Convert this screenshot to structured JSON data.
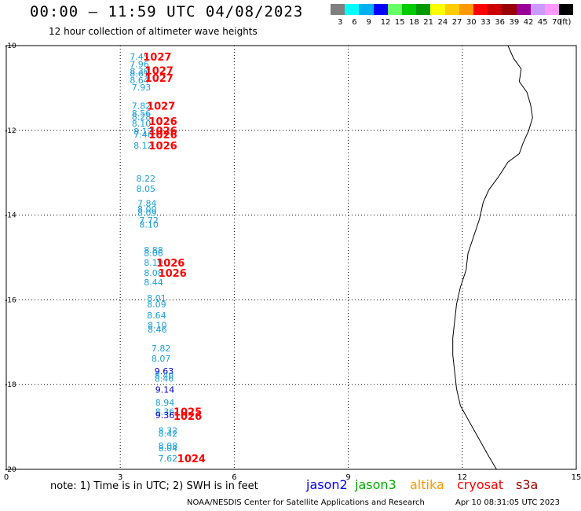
{
  "title": "00:00 – 11:59 UTC 04/08/2023",
  "subtitle": "12 hour collection of altimeter wave heights",
  "legend": {
    "unit": "(ft)",
    "bins": [
      {
        "label": "3",
        "color": "#808080"
      },
      {
        "label": "6",
        "color": "#00ffff"
      },
      {
        "label": "9",
        "color": "#00b0f0"
      },
      {
        "label": "12",
        "color": "#0000ff"
      },
      {
        "label": "15",
        "color": "#66ff66"
      },
      {
        "label": "18",
        "color": "#00cc00"
      },
      {
        "label": "21",
        "color": "#009900"
      },
      {
        "label": "24",
        "color": "#ffff00"
      },
      {
        "label": "27",
        "color": "#ffcc00"
      },
      {
        "label": "30",
        "color": "#ff9900"
      },
      {
        "label": "33",
        "color": "#ff0000"
      },
      {
        "label": "36",
        "color": "#cc0000"
      },
      {
        "label": "39",
        "color": "#990000"
      },
      {
        "label": "42",
        "color": "#990099"
      },
      {
        "label": "45",
        "color": "#cc99ff"
      },
      {
        "label": "70",
        "color": "#ff99ff"
      },
      {
        "label": "",
        "color": "#000000"
      }
    ]
  },
  "map": {
    "lon_range": [
      0,
      15
    ],
    "lat_range": [
      -20,
      -10
    ],
    "x_ticks": [
      "0",
      "3",
      "6",
      "9",
      "12",
      "15"
    ],
    "y_ticks": [
      "-10",
      "-12",
      "-14",
      "-16",
      "-18",
      "-20"
    ],
    "grid": "dotted",
    "colors": {
      "swh": "#1aa0d8",
      "swh_dark": "#0000cc",
      "pressure": "#ff0000"
    },
    "swh_readings": [
      {
        "lon": 3.25,
        "lat": -10.26,
        "value": "7.45"
      },
      {
        "lon": 3.25,
        "lat": -10.44,
        "value": "7.96"
      },
      {
        "lon": 3.25,
        "lat": -10.6,
        "value": "8.30"
      },
      {
        "lon": 3.25,
        "lat": -10.66,
        "value": "8.61"
      },
      {
        "lon": 3.25,
        "lat": -10.82,
        "value": "8.64"
      },
      {
        "lon": 3.3,
        "lat": -10.98,
        "value": "7.93"
      },
      {
        "lon": 3.3,
        "lat": -11.42,
        "value": "7.82"
      },
      {
        "lon": 3.3,
        "lat": -11.6,
        "value": "8.56"
      },
      {
        "lon": 3.3,
        "lat": -11.68,
        "value": "8.28"
      },
      {
        "lon": 3.3,
        "lat": -11.84,
        "value": "8.10"
      },
      {
        "lon": 3.35,
        "lat": -12.02,
        "value": "8.17"
      },
      {
        "lon": 3.35,
        "lat": -12.1,
        "value": "7.46"
      },
      {
        "lon": 3.35,
        "lat": -12.36,
        "value": "8.12"
      },
      {
        "lon": 3.42,
        "lat": -13.14,
        "value": "8.22"
      },
      {
        "lon": 3.42,
        "lat": -13.38,
        "value": "8.05"
      },
      {
        "lon": 3.45,
        "lat": -13.72,
        "value": "7.84"
      },
      {
        "lon": 3.45,
        "lat": -13.86,
        "value": "8.00"
      },
      {
        "lon": 3.45,
        "lat": -13.94,
        "value": "8.09"
      },
      {
        "lon": 3.5,
        "lat": -14.12,
        "value": "7.72"
      },
      {
        "lon": 3.5,
        "lat": -14.22,
        "value": "8.10"
      },
      {
        "lon": 3.62,
        "lat": -14.82,
        "value": "8.88"
      },
      {
        "lon": 3.62,
        "lat": -14.9,
        "value": "8.06"
      },
      {
        "lon": 3.62,
        "lat": -15.12,
        "value": "8.19"
      },
      {
        "lon": 3.62,
        "lat": -15.36,
        "value": "8.08"
      },
      {
        "lon": 3.62,
        "lat": -15.58,
        "value": "8.44"
      },
      {
        "lon": 3.7,
        "lat": -15.96,
        "value": "8.01"
      },
      {
        "lon": 3.7,
        "lat": -16.1,
        "value": "8.09"
      },
      {
        "lon": 3.7,
        "lat": -16.36,
        "value": "8.64"
      },
      {
        "lon": 3.72,
        "lat": -16.6,
        "value": "8.10"
      },
      {
        "lon": 3.72,
        "lat": -16.7,
        "value": "8.46"
      },
      {
        "lon": 3.82,
        "lat": -17.14,
        "value": "7.82"
      },
      {
        "lon": 3.82,
        "lat": -17.38,
        "value": "8.07"
      },
      {
        "lon": 3.9,
        "lat": -17.68,
        "value": "9.63",
        "dark": true
      },
      {
        "lon": 3.9,
        "lat": -17.78,
        "value": "8.40"
      },
      {
        "lon": 3.9,
        "lat": -17.86,
        "value": "8.46"
      },
      {
        "lon": 3.92,
        "lat": -18.12,
        "value": "9.14",
        "dark": true
      },
      {
        "lon": 3.92,
        "lat": -18.42,
        "value": "8.94"
      },
      {
        "lon": 3.92,
        "lat": -18.64,
        "value": "8.36"
      },
      {
        "lon": 3.92,
        "lat": -18.72,
        "value": "9.36",
        "dark": true
      },
      {
        "lon": 4.0,
        "lat": -19.08,
        "value": "8.32"
      },
      {
        "lon": 4.0,
        "lat": -19.16,
        "value": "8.42"
      },
      {
        "lon": 4.0,
        "lat": -19.44,
        "value": "8.08"
      },
      {
        "lon": 4.0,
        "lat": -19.5,
        "value": "8.04"
      },
      {
        "lon": 4.0,
        "lat": -19.74,
        "value": "7.62"
      }
    ],
    "pressure_readings": [
      {
        "lon": 3.6,
        "lat": -10.26,
        "value": "1027"
      },
      {
        "lon": 3.65,
        "lat": -10.58,
        "value": "1027"
      },
      {
        "lon": 3.65,
        "lat": -10.76,
        "value": "1027"
      },
      {
        "lon": 3.7,
        "lat": -11.42,
        "value": "1027"
      },
      {
        "lon": 3.75,
        "lat": -11.78,
        "value": "1026"
      },
      {
        "lon": 3.75,
        "lat": -12.0,
        "value": "1026"
      },
      {
        "lon": 3.75,
        "lat": -12.1,
        "value": "1026"
      },
      {
        "lon": 3.75,
        "lat": -12.36,
        "value": "1026"
      },
      {
        "lon": 3.95,
        "lat": -15.12,
        "value": "1026"
      },
      {
        "lon": 4.0,
        "lat": -15.36,
        "value": "1026"
      },
      {
        "lon": 4.4,
        "lat": -18.64,
        "value": "1025"
      },
      {
        "lon": 4.4,
        "lat": -18.74,
        "value": "1026"
      },
      {
        "lon": 4.5,
        "lat": -19.74,
        "value": "1024"
      }
    ],
    "coastline": [
      [
        13.2,
        -10.0
      ],
      [
        13.35,
        -10.3
      ],
      [
        13.55,
        -10.55
      ],
      [
        13.5,
        -10.85
      ],
      [
        13.7,
        -11.1
      ],
      [
        13.8,
        -11.4
      ],
      [
        13.85,
        -11.7
      ],
      [
        13.75,
        -12.0
      ],
      [
        13.6,
        -12.3
      ],
      [
        13.5,
        -12.55
      ],
      [
        13.2,
        -12.75
      ],
      [
        12.95,
        -13.1
      ],
      [
        12.7,
        -13.4
      ],
      [
        12.55,
        -13.7
      ],
      [
        12.45,
        -14.1
      ],
      [
        12.3,
        -14.5
      ],
      [
        12.15,
        -14.9
      ],
      [
        12.1,
        -15.3
      ],
      [
        11.95,
        -15.7
      ],
      [
        11.85,
        -16.1
      ],
      [
        11.8,
        -16.5
      ],
      [
        11.75,
        -16.9
      ],
      [
        11.75,
        -17.3
      ],
      [
        11.8,
        -17.7
      ],
      [
        11.85,
        -18.1
      ],
      [
        11.95,
        -18.5
      ],
      [
        12.2,
        -18.9
      ],
      [
        12.45,
        -19.3
      ],
      [
        12.7,
        -19.7
      ],
      [
        12.9,
        -20.0
      ]
    ]
  },
  "footer": {
    "note": "note: 1) Time is in UTC; 2) SWH is in feet",
    "satellites": [
      {
        "name": "jason2",
        "color": "#0000ff"
      },
      {
        "name": "jason3",
        "color": "#00aa00"
      },
      {
        "name": "altika",
        "color": "#ff9900"
      },
      {
        "name": "cryosat",
        "color": "#ff0000"
      },
      {
        "name": "s3a",
        "color": "#990000"
      }
    ],
    "credit": "NOAA/NESDIS Center for Satellite Applications and Research",
    "timestamp": "Apr 10 08:31:05 UTC 2023"
  }
}
